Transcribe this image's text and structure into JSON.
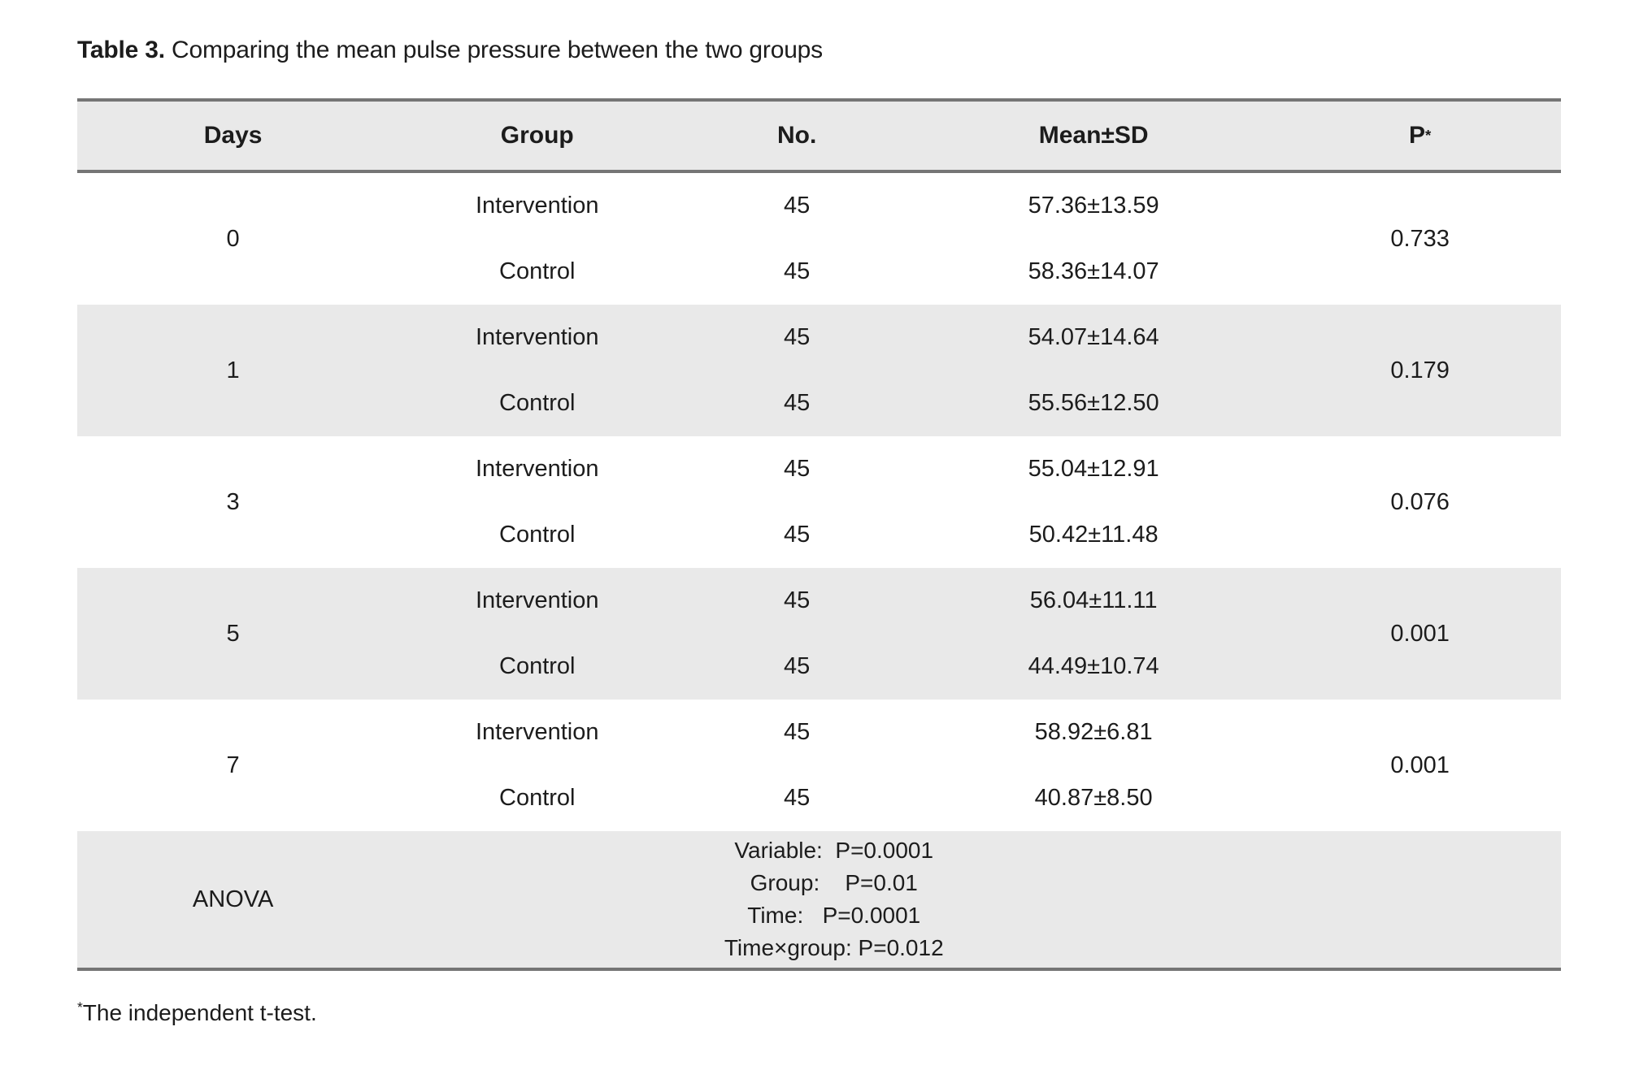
{
  "title": {
    "label_bold": "Table 3.",
    "label_rest": " Comparing the mean pulse pressure between the two groups"
  },
  "table": {
    "headers": {
      "days": "Days",
      "group": "Group",
      "no": "No.",
      "mean_sd": "Mean±SD",
      "p": "P",
      "p_superscript": "*"
    },
    "groups": [
      {
        "day": "0",
        "rows": [
          {
            "group": "Intervention",
            "n": "45",
            "mean_sd": "57.36±13.59"
          },
          {
            "group": "Control",
            "n": "45",
            "mean_sd": "58.36±14.07"
          }
        ],
        "p": "0.733"
      },
      {
        "day": "1",
        "rows": [
          {
            "group": "Intervention",
            "n": "45",
            "mean_sd": "54.07±14.64"
          },
          {
            "group": "Control",
            "n": "45",
            "mean_sd": "55.56±12.50"
          }
        ],
        "p": "0.179"
      },
      {
        "day": "3",
        "rows": [
          {
            "group": "Intervention",
            "n": "45",
            "mean_sd": "55.04±12.91"
          },
          {
            "group": "Control",
            "n": "45",
            "mean_sd": "50.42±11.48"
          }
        ],
        "p": "0.076"
      },
      {
        "day": "5",
        "rows": [
          {
            "group": "Intervention",
            "n": "45",
            "mean_sd": "56.04±11.11"
          },
          {
            "group": "Control",
            "n": "45",
            "mean_sd": "44.49±10.74"
          }
        ],
        "p": "0.001"
      },
      {
        "day": "7",
        "rows": [
          {
            "group": "Intervention",
            "n": "45",
            "mean_sd": "58.92±6.81"
          },
          {
            "group": "Control",
            "n": "45",
            "mean_sd": "40.87±8.50"
          }
        ],
        "p": "0.001"
      }
    ],
    "anova": {
      "label": "ANOVA",
      "lines": [
        "Variable:  P=0.0001",
        "Group:    P=0.01",
        "Time:   P=0.0001",
        "Time×group: P=0.012"
      ]
    }
  },
  "footnote": {
    "superscript": "*",
    "text": "The independent t-test."
  },
  "colors": {
    "stripe_gray": "#e9e9e9",
    "border_gray": "#757575",
    "text": "#1c1c1c",
    "background": "#ffffff"
  }
}
